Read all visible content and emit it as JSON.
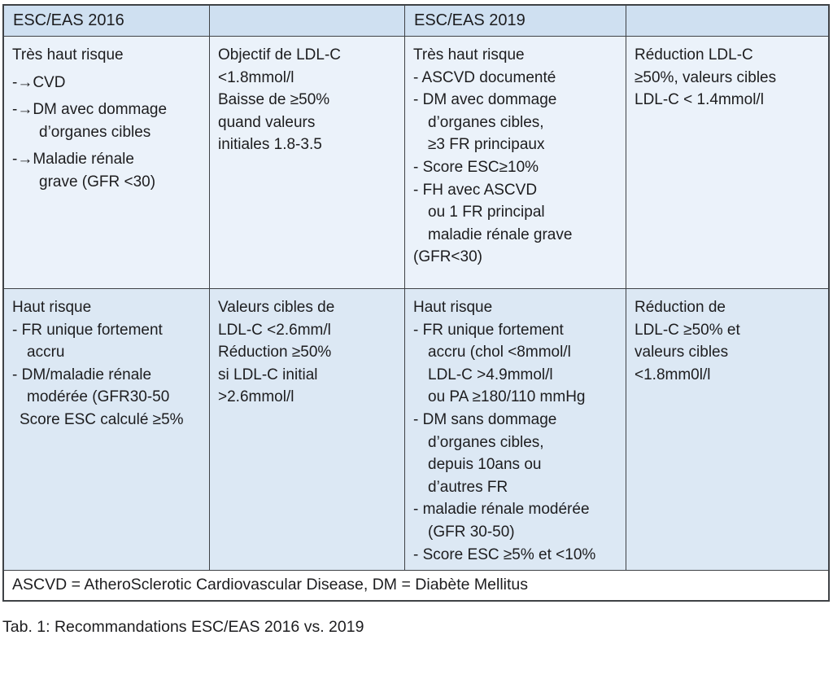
{
  "colors": {
    "header_bg": "#cfe0f1",
    "row1_bg": "#ebf2fa",
    "row2_bg": "#dce8f4",
    "border": "#3f4246",
    "text": "#1d1d1f",
    "page_bg": "#ffffff"
  },
  "header": {
    "col1": "ESC/EAS 2016",
    "col2": "",
    "col3": "ESC/EAS 2019",
    "col4": ""
  },
  "cells": {
    "r1c1": [
      {
        "t": "Très haut risque",
        "c": "t"
      },
      {
        "t": "-→CVD",
        "c": "ab"
      },
      {
        "t": "-→DM avec dommage",
        "c": "ab"
      },
      {
        "t": "d’organes cibles",
        "c": "ah"
      },
      {
        "t": "-→Maladie rénale",
        "c": "ab"
      },
      {
        "t": "grave (GFR <30)",
        "c": "ah"
      }
    ],
    "r1c2": [
      {
        "t": "Objectif de LDL-C",
        "c": "t"
      },
      {
        "t": "<1.8mmol/l",
        "c": "t"
      },
      {
        "t": "Baisse de ≥50%",
        "c": "t"
      },
      {
        "t": "quand valeurs",
        "c": "t"
      },
      {
        "t": "initiales 1.8-3.5",
        "c": "t"
      }
    ],
    "r1c3": [
      {
        "t": "Très haut risque",
        "c": "t"
      },
      {
        "t": "- ASCVD documenté",
        "c": "b"
      },
      {
        "t": "- DM avec dommage",
        "c": "b"
      },
      {
        "t": "d’organes cibles,",
        "c": "h"
      },
      {
        "t": "≥3 FR principaux",
        "c": "h"
      },
      {
        "t": "- Score ESC≥10%",
        "c": "b"
      },
      {
        "t": "- FH avec ASCVD",
        "c": "b"
      },
      {
        "t": "ou 1 FR principal",
        "c": "h"
      },
      {
        "t": "maladie rénale grave",
        "c": "h"
      },
      {
        "t": "(GFR<30)",
        "c": "t"
      }
    ],
    "r1c4": [
      {
        "t": "Réduction LDL-C",
        "c": "t"
      },
      {
        "t": "≥50%, valeurs cibles",
        "c": "t"
      },
      {
        "t": "LDL-C < 1.4mmol/l",
        "c": "t"
      }
    ],
    "r2c1": [
      {
        "t": "Haut risque",
        "c": "t"
      },
      {
        "t": "- FR unique fortement",
        "c": "b"
      },
      {
        "t": "accru",
        "c": "h"
      },
      {
        "t": "- DM/maladie rénale",
        "c": "b"
      },
      {
        "t": "modérée (GFR30-50",
        "c": "h"
      },
      {
        "t": "Score ESC calculé ≥5%",
        "c": "s"
      }
    ],
    "r2c2": [
      {
        "t": "Valeurs cibles de",
        "c": "t"
      },
      {
        "t": "LDL-C <2.6mm/l",
        "c": "t"
      },
      {
        "t": "Réduction ≥50%",
        "c": "t"
      },
      {
        "t": "si LDL-C initial",
        "c": "t"
      },
      {
        "t": ">2.6mmol/l",
        "c": "t"
      }
    ],
    "r2c3": [
      {
        "t": "Haut risque",
        "c": "t"
      },
      {
        "t": "- FR unique fortement",
        "c": "b"
      },
      {
        "t": "accru (chol <8mmol/l",
        "c": "h"
      },
      {
        "t": "LDL-C >4.9mmol/l",
        "c": "h"
      },
      {
        "t": "ou PA ≥180/110 mmHg",
        "c": "h"
      },
      {
        "t": "- DM sans dommage",
        "c": "b"
      },
      {
        "t": "d’organes cibles,",
        "c": "h"
      },
      {
        "t": "depuis 10ans ou",
        "c": "h"
      },
      {
        "t": "d’autres FR",
        "c": "h"
      },
      {
        "t": "- maladie rénale modérée",
        "c": "b"
      },
      {
        "t": "(GFR 30-50)",
        "c": "h"
      },
      {
        "t": "- Score ESC ≥5% et <10%",
        "c": "b"
      }
    ],
    "r2c4": [
      {
        "t": "Réduction de",
        "c": "t"
      },
      {
        "t": "LDL-C ≥50% et",
        "c": "t"
      },
      {
        "t": "valeurs cibles",
        "c": "t"
      },
      {
        "t": "<1.8mm0l/l",
        "c": "t"
      }
    ]
  },
  "footer_note": "ASCVD = AtheroSclerotic Cardiovascular Disease, DM = Diabète Mellitus",
  "caption": "Tab. 1: Recommandations ESC/EAS 2016 vs. 2019"
}
